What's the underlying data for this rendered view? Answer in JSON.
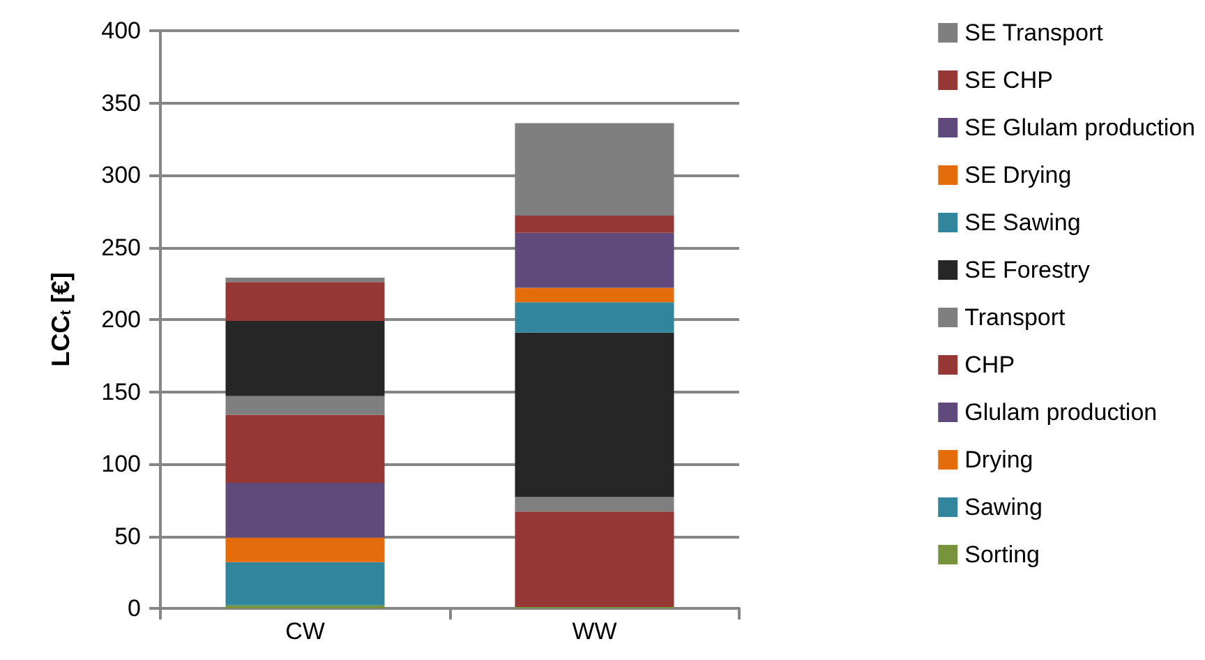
{
  "chart_data": {
    "type": "bar",
    "stacked": true,
    "ylabel": "LCC$_{t}$ [€]",
    "categories": [
      "CW",
      "WW"
    ],
    "ylim": [
      0,
      400
    ],
    "yticks": [
      0,
      50,
      100,
      150,
      200,
      250,
      300,
      350,
      400
    ],
    "grid": "y",
    "legend": "right",
    "series": [
      {
        "name": "Sorting",
        "color": "#77933c",
        "values": [
          2,
          1
        ]
      },
      {
        "name": "Sawing",
        "color": "#31859c",
        "values": [
          30,
          0
        ]
      },
      {
        "name": "Drying",
        "color": "#e46c0a",
        "values": [
          17,
          0
        ]
      },
      {
        "name": "Glulam production",
        "color": "#604a7b",
        "values": [
          38,
          0
        ]
      },
      {
        "name": "CHP",
        "color": "#953735",
        "values": [
          47,
          66
        ]
      },
      {
        "name": "Transport",
        "color": "#7f7f7f",
        "values": [
          13,
          10
        ]
      },
      {
        "name": "SE Forestry",
        "color": "#262626",
        "values": [
          52,
          114
        ]
      },
      {
        "name": "SE Sawing",
        "color": "#31859c",
        "values": [
          0,
          21
        ]
      },
      {
        "name": "SE Drying",
        "color": "#e46c0a",
        "values": [
          0,
          10
        ]
      },
      {
        "name": "SE Glulam production",
        "color": "#604a7b",
        "values": [
          0,
          38
        ]
      },
      {
        "name": "SE CHP",
        "color": "#953735",
        "values": [
          27,
          12
        ]
      },
      {
        "name": "SE Transport",
        "color": "#7f7f7f",
        "values": [
          3,
          64
        ]
      }
    ]
  }
}
